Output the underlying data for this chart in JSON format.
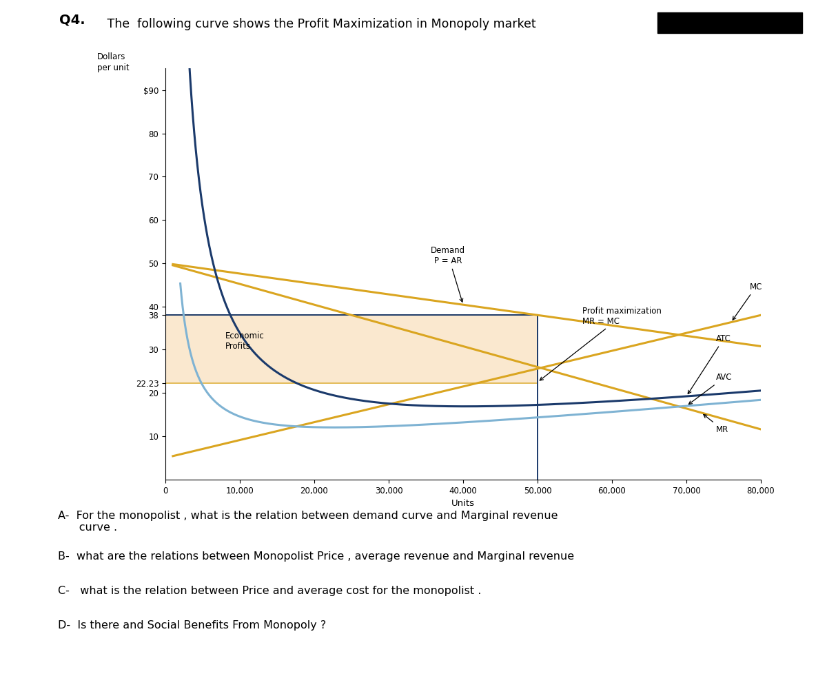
{
  "title_q": "Q4.",
  "title_text": " The  following curve shows the Profit Maximization in Monopoly market",
  "ylabel": "Dollars\nper unit",
  "xlabel": "Units",
  "xlim": [
    0,
    80000
  ],
  "ylim": [
    0,
    95
  ],
  "yticks": [
    10,
    20,
    22.23,
    30,
    38,
    40,
    50,
    60,
    70,
    80,
    90
  ],
  "ytick_labels": [
    "10",
    "20",
    "22.23",
    "30",
    "38",
    "40",
    "50",
    "60",
    "70",
    "80",
    "$90"
  ],
  "xticks": [
    0,
    10000,
    20000,
    30000,
    40000,
    50000,
    60000,
    70000,
    80000
  ],
  "xtick_labels": [
    "0",
    "10,000",
    "20,000",
    "30,000",
    "40,000",
    "50,000",
    "60,000",
    "70,000",
    "80,000"
  ],
  "profit_max_x": 50000,
  "profit_max_price": 38,
  "profit_max_atc": 22.23,
  "demand_color": "#DAA520",
  "atc_color": "#1B3A6B",
  "avc_color": "#7FB3D3",
  "economic_profit_fill": "#FAE5C7",
  "econ_profit_edge": "#DAA520",
  "vline_color": "#1B3A6B",
  "hline_color": "#1B3A6B",
  "background_color": "#ffffff",
  "questions": [
    "A-  For the monopolist , what is the relation between demand curve and Marginal revenue\n      curve .",
    "B-  what are the relations between Monopolist Price , average revenue and Marginal revenue",
    "C-   what is the relation between Price and average cost for the monopolist .",
    "D-  Is there and Social Benefits From Monopoly ?"
  ]
}
